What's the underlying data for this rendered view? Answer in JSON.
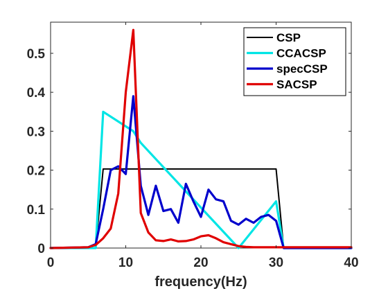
{
  "chart_data": {
    "type": "line",
    "xlabel": "frequency(Hz)",
    "ylabel": "",
    "xlim": [
      0,
      40
    ],
    "ylim": [
      0,
      0.58
    ],
    "xticks": [
      0,
      10,
      20,
      30,
      40
    ],
    "yticks": [
      0,
      0.1,
      0.2,
      0.3,
      0.4,
      0.5
    ],
    "xtick_labels": [
      "0",
      "10",
      "20",
      "30",
      "40"
    ],
    "ytick_labels": [
      "0",
      "0.1",
      "0.2",
      "0.3",
      "0.4",
      "0.5"
    ],
    "grid": false,
    "legend_position": "top-right",
    "series": [
      {
        "name": "CSP",
        "color": "#000000",
        "x": [
          0,
          6,
          7,
          30,
          31,
          40
        ],
        "y": [
          0,
          0,
          0.203,
          0.203,
          0,
          0
        ]
      },
      {
        "name": "CCACSP",
        "color": "#00e5e5",
        "x": [
          0,
          6,
          7,
          11,
          12,
          25,
          30,
          31,
          40
        ],
        "y": [
          0,
          0,
          0.35,
          0.3,
          0.27,
          0,
          0.12,
          0,
          0
        ]
      },
      {
        "name": "specCSP",
        "color": "#0000cc",
        "x": [
          0,
          5,
          6,
          7,
          8,
          9,
          10,
          11,
          12,
          13,
          14,
          15,
          16,
          17,
          18,
          19,
          20,
          21,
          22,
          23,
          24,
          25,
          26,
          27,
          28,
          29,
          30,
          31,
          32,
          40
        ],
        "y": [
          0,
          0.002,
          0.01,
          0.1,
          0.2,
          0.21,
          0.19,
          0.39,
          0.16,
          0.085,
          0.16,
          0.095,
          0.1,
          0.065,
          0.165,
          0.12,
          0.08,
          0.15,
          0.125,
          0.12,
          0.07,
          0.06,
          0.075,
          0.065,
          0.08,
          0.085,
          0.07,
          0,
          0,
          0
        ]
      },
      {
        "name": "SACSP",
        "color": "#e00000",
        "x": [
          0,
          5,
          6,
          7,
          8,
          9,
          10,
          11,
          12,
          13,
          14,
          15,
          16,
          17,
          18,
          19,
          20,
          21,
          22,
          23,
          24,
          25,
          26,
          27,
          28,
          29,
          30,
          31,
          32,
          40
        ],
        "y": [
          0,
          0.002,
          0.008,
          0.025,
          0.05,
          0.14,
          0.4,
          0.56,
          0.09,
          0.04,
          0.02,
          0.018,
          0.022,
          0.017,
          0.018,
          0.022,
          0.03,
          0.033,
          0.025,
          0.015,
          0.01,
          0.005,
          0.003,
          0.002,
          0.002,
          0.002,
          0.002,
          0.002,
          0.002,
          0.002
        ]
      }
    ]
  }
}
